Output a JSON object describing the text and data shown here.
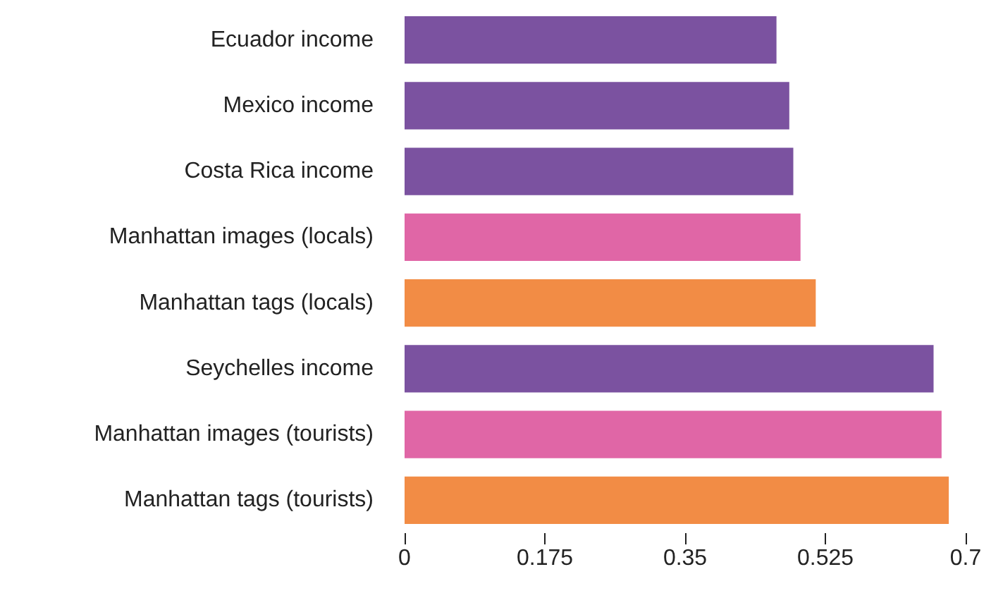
{
  "chart_data": {
    "type": "bar",
    "orientation": "horizontal",
    "categories": [
      "Ecuador income",
      "Mexico income",
      "Costa Rica income",
      "Manhattan images (locals)",
      "Manhattan tags (locals)",
      "Seychelles income",
      "Manhattan images (tourists)",
      "Manhattan tags (tourists)"
    ],
    "values": [
      0.464,
      0.48,
      0.485,
      0.494,
      0.513,
      0.66,
      0.67,
      0.679
    ],
    "colors": [
      "#7b52a0",
      "#7b52a0",
      "#7b52a0",
      "#e066a6",
      "#f28c45",
      "#7b52a0",
      "#e066a6",
      "#f28c45"
    ],
    "xlim": [
      0,
      0.7
    ],
    "xticks": [
      0,
      0.175,
      0.35,
      0.525,
      0.7
    ],
    "grid": false
  }
}
